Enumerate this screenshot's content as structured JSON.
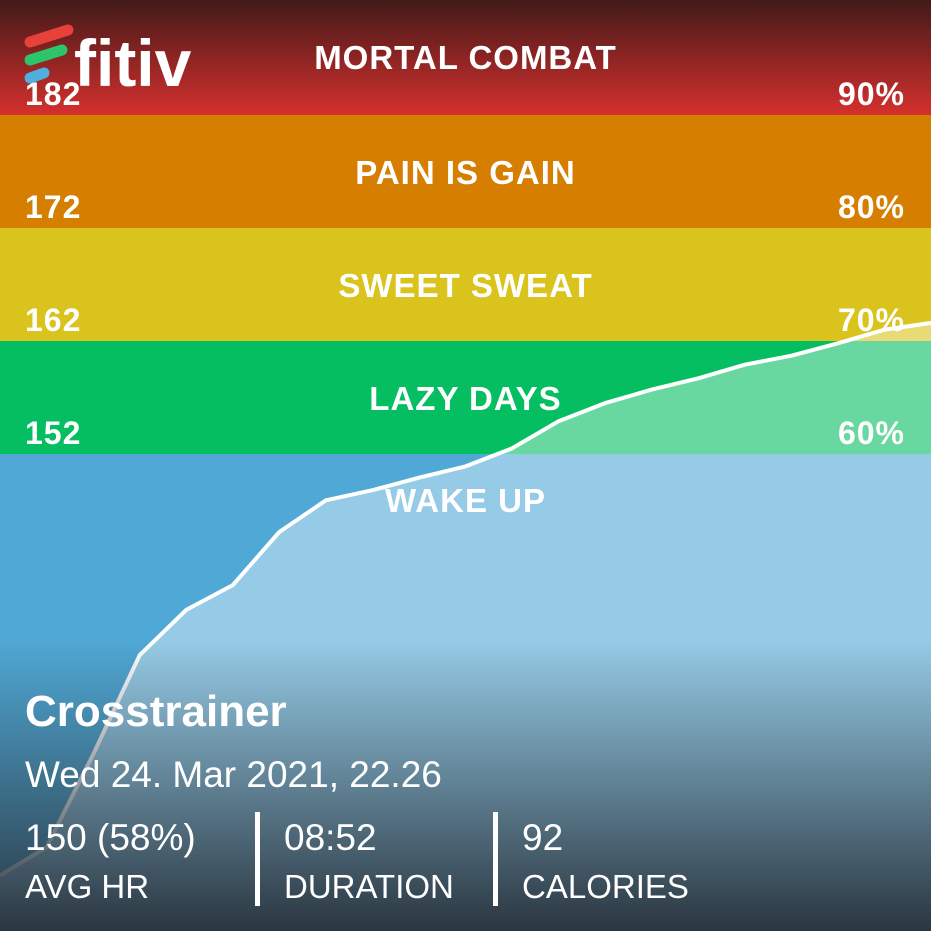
{
  "logo": "fitiv",
  "zones": [
    {
      "name": "MORTAL COMBAT",
      "bpm": 182,
      "percent": "90%",
      "color": "#d5302d"
    },
    {
      "name": "PAIN IS GAIN",
      "bpm": 172,
      "percent": "80%",
      "color": "#d67e00"
    },
    {
      "name": "SWEET SWEAT",
      "bpm": 162,
      "percent": "70%",
      "color": "#d9c31c"
    },
    {
      "name": "LAZY DAYS",
      "bpm": 152,
      "percent": "60%",
      "color": "#05be62"
    },
    {
      "name": "WAKE UP",
      "color": "#4fa8d5"
    }
  ],
  "heart_rate": [
    114.7,
    117.2,
    125.4,
    134.2,
    138.2,
    140.4,
    145.1,
    147.9,
    148.8,
    149.9,
    150.9,
    152.5,
    154.9,
    156.5,
    157.7,
    158.7,
    159.9,
    160.7,
    161.8,
    163.0,
    163.6
  ],
  "workout": {
    "title": "Crosstrainer",
    "date": "Wed 24. Mar 2021, 22.26",
    "stats": [
      {
        "value": "150 (58%)",
        "label": "AVG HR"
      },
      {
        "value": "08:52",
        "label": "DURATION"
      },
      {
        "value": "92",
        "label": "CALORIES"
      }
    ]
  }
}
